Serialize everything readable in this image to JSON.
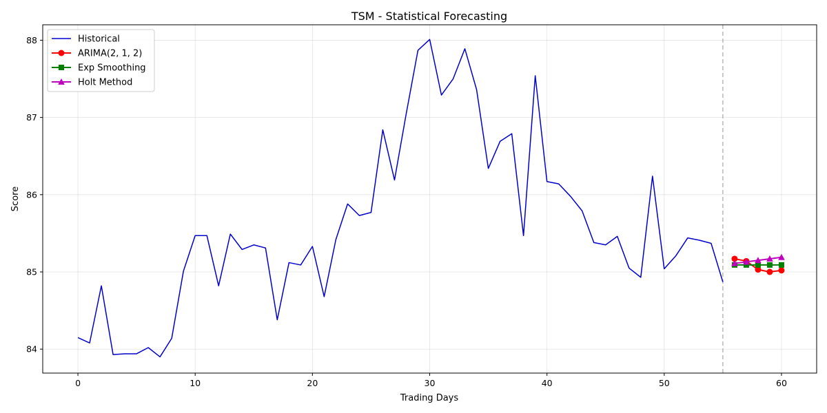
{
  "chart_data": {
    "type": "line",
    "title": "TSM - Statistical Forecasting",
    "xlabel": "Trading Days",
    "ylabel": "Score",
    "xlim": [
      -3,
      63
    ],
    "ylim": [
      83.69,
      88.2
    ],
    "xticks": [
      0,
      10,
      20,
      30,
      40,
      50,
      60
    ],
    "yticks": [
      84,
      85,
      86,
      87,
      88
    ],
    "grid": true,
    "legend_position": "top-left",
    "forecast_start_marker_x": 55,
    "series": [
      {
        "name": "Historical",
        "color": "#0000cc",
        "marker": "none",
        "x": [
          0,
          1,
          2,
          3,
          4,
          5,
          6,
          7,
          8,
          9,
          10,
          11,
          12,
          13,
          14,
          15,
          16,
          17,
          18,
          19,
          20,
          21,
          22,
          23,
          24,
          25,
          26,
          27,
          28,
          29,
          30,
          31,
          32,
          33,
          34,
          35,
          36,
          37,
          38,
          39,
          40,
          41,
          42,
          43,
          44,
          45,
          46,
          47,
          48,
          49,
          50,
          51,
          52,
          53,
          54,
          55
        ],
        "y": [
          84.15,
          84.08,
          84.82,
          83.93,
          83.94,
          83.94,
          84.02,
          83.9,
          84.14,
          85.01,
          85.47,
          85.47,
          84.82,
          85.49,
          85.29,
          85.35,
          85.31,
          84.38,
          85.12,
          85.09,
          85.33,
          84.68,
          85.42,
          85.88,
          85.73,
          85.77,
          86.84,
          86.19,
          87.05,
          87.87,
          88.01,
          87.29,
          87.5,
          87.89,
          87.36,
          86.34,
          86.69,
          86.79,
          85.47,
          87.54,
          86.17,
          86.14,
          85.98,
          85.79,
          85.38,
          85.35,
          85.46,
          85.05,
          84.93,
          86.24,
          85.04,
          85.21,
          85.44,
          85.41,
          85.37,
          84.87
        ]
      },
      {
        "name": "ARIMA(2, 1, 2)",
        "color": "#ff0000",
        "marker": "circle",
        "x": [
          56,
          57,
          58,
          59,
          60
        ],
        "y": [
          85.17,
          85.14,
          85.03,
          85.0,
          85.02
        ]
      },
      {
        "name": "Exp Smoothing",
        "color": "#008000",
        "marker": "square",
        "x": [
          56,
          57,
          58,
          59,
          60
        ],
        "y": [
          85.09,
          85.09,
          85.09,
          85.09,
          85.09
        ]
      },
      {
        "name": "Holt Method",
        "color": "#bf00bf",
        "marker": "triangle",
        "x": [
          56,
          57,
          58,
          59,
          60
        ],
        "y": [
          85.11,
          85.13,
          85.15,
          85.17,
          85.19
        ]
      }
    ]
  }
}
